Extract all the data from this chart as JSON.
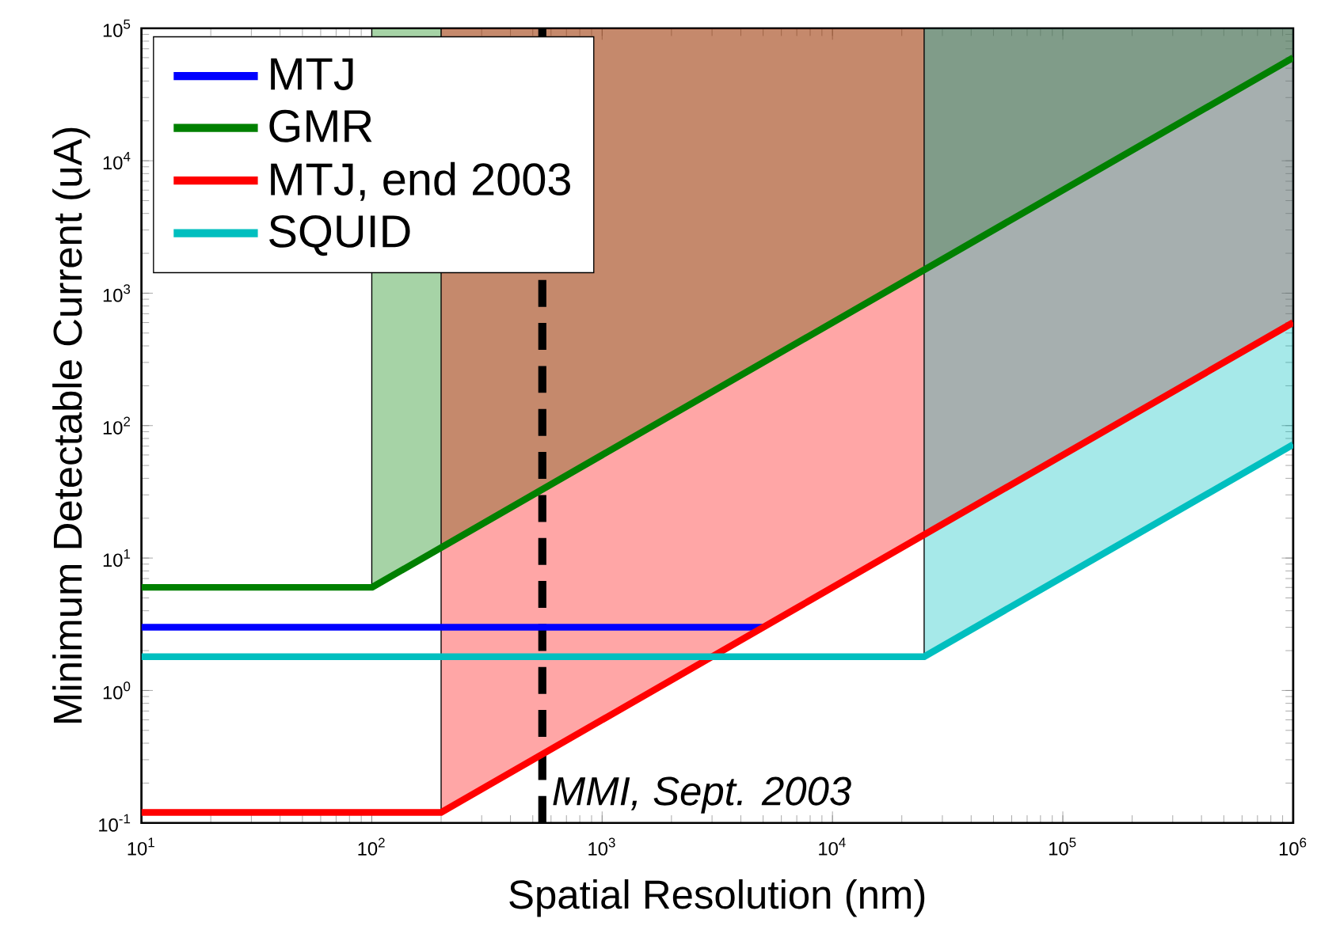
{
  "chart_data": {
    "type": "line",
    "xlabel": "Spatial Resolution (nm)",
    "ylabel": "Minimum Detectable Current (uA)",
    "log": "xy",
    "xlim": [
      10,
      1000000
    ],
    "ylim": [
      0.1,
      100000
    ],
    "xticks": [
      {
        "value": 10,
        "label": "10$^{1}$"
      },
      {
        "value": 100,
        "label": "10$^{2}$"
      },
      {
        "value": 1000,
        "label": "10$^{3}$"
      },
      {
        "value": 10000,
        "label": "10$^{4}$"
      },
      {
        "value": 100000,
        "label": "10$^{5}$"
      },
      {
        "value": 1000000,
        "label": "10$^{6}$"
      }
    ],
    "yticks": [
      {
        "value": 0.1,
        "label": "10$^{-1}$"
      },
      {
        "value": 1,
        "label": "10$^{0}$"
      },
      {
        "value": 10,
        "label": "10$^{1}$"
      },
      {
        "value": 100,
        "label": "10$^{2}$"
      },
      {
        "value": 1000,
        "label": "10$^{3}$"
      },
      {
        "value": 10000,
        "label": "10$^{4}$"
      },
      {
        "value": 100000,
        "label": "10$^{5}$"
      }
    ],
    "series": [
      {
        "name": "MTJ",
        "color": "#0000ff",
        "x": [
          10,
          5000
        ],
        "values": [
          3,
          3
        ]
      },
      {
        "name": "GMR",
        "color": "#008000",
        "x": [
          10,
          100,
          1000000
        ],
        "values": [
          6,
          6,
          60000
        ],
        "lower": [
          null,
          6,
          60000
        ],
        "upper": [
          null,
          100000,
          100000
        ]
      },
      {
        "name": "MTJ, end 2003",
        "color": "#ff0000",
        "x": [
          10,
          200,
          1000000
        ],
        "values": [
          0.12,
          0.12,
          600
        ],
        "lower": [
          null,
          0.12,
          600
        ],
        "upper": [
          null,
          100000,
          100000
        ]
      },
      {
        "name": "SQUID",
        "color": "#00bfbf",
        "x": [
          10,
          25000,
          1000000
        ],
        "values": [
          1.8,
          1.8,
          72
        ],
        "lower": [
          null,
          1.8,
          72
        ],
        "upper": [
          null,
          100000,
          100000
        ]
      }
    ],
    "ref_lines": [
      {
        "axis": "x",
        "value": 550,
        "label": "MMI, Sept. 2003",
        "color": "#000000",
        "line_style": "dashed"
      }
    ],
    "legend": "top left",
    "grid": false,
    "marker": "none",
    "line_style": "solid"
  }
}
